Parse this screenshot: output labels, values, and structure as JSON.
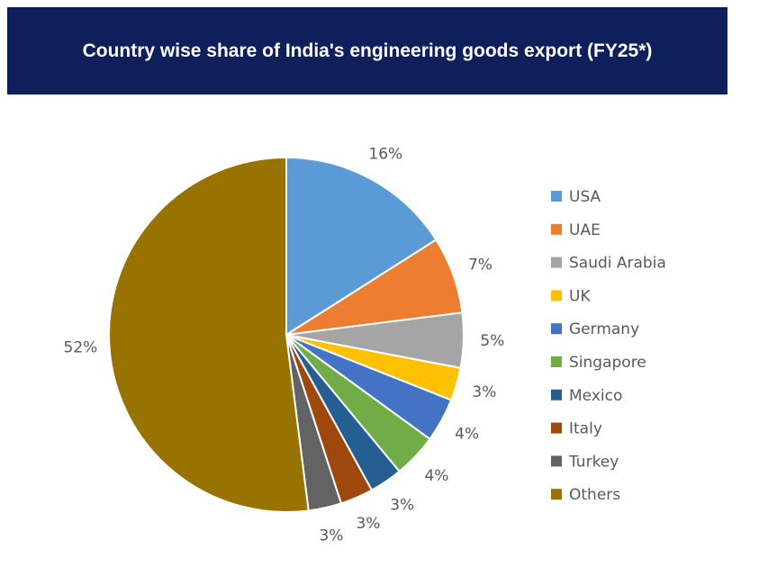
{
  "chart_data": {
    "type": "pie",
    "title": "Country wise share of India's engineering goods export (FY25*)",
    "categories": [
      "USA",
      "UAE",
      "Saudi Arabia",
      "UK",
      "Germany",
      "Singapore",
      "Mexico",
      "Italy",
      "Turkey",
      "Others"
    ],
    "values": [
      16,
      7,
      5,
      3,
      4,
      4,
      3,
      3,
      3,
      52
    ],
    "value_labels": [
      "16%",
      "7%",
      "5%",
      "3%",
      "4%",
      "4%",
      "3%",
      "3%",
      "3%",
      "52%"
    ],
    "colors": [
      "#5b9bd5",
      "#ed7d31",
      "#a5a5a5",
      "#ffc000",
      "#4472c4",
      "#70ad47",
      "#255e91",
      "#9e480e",
      "#636363",
      "#997300"
    ],
    "legend": "right"
  }
}
